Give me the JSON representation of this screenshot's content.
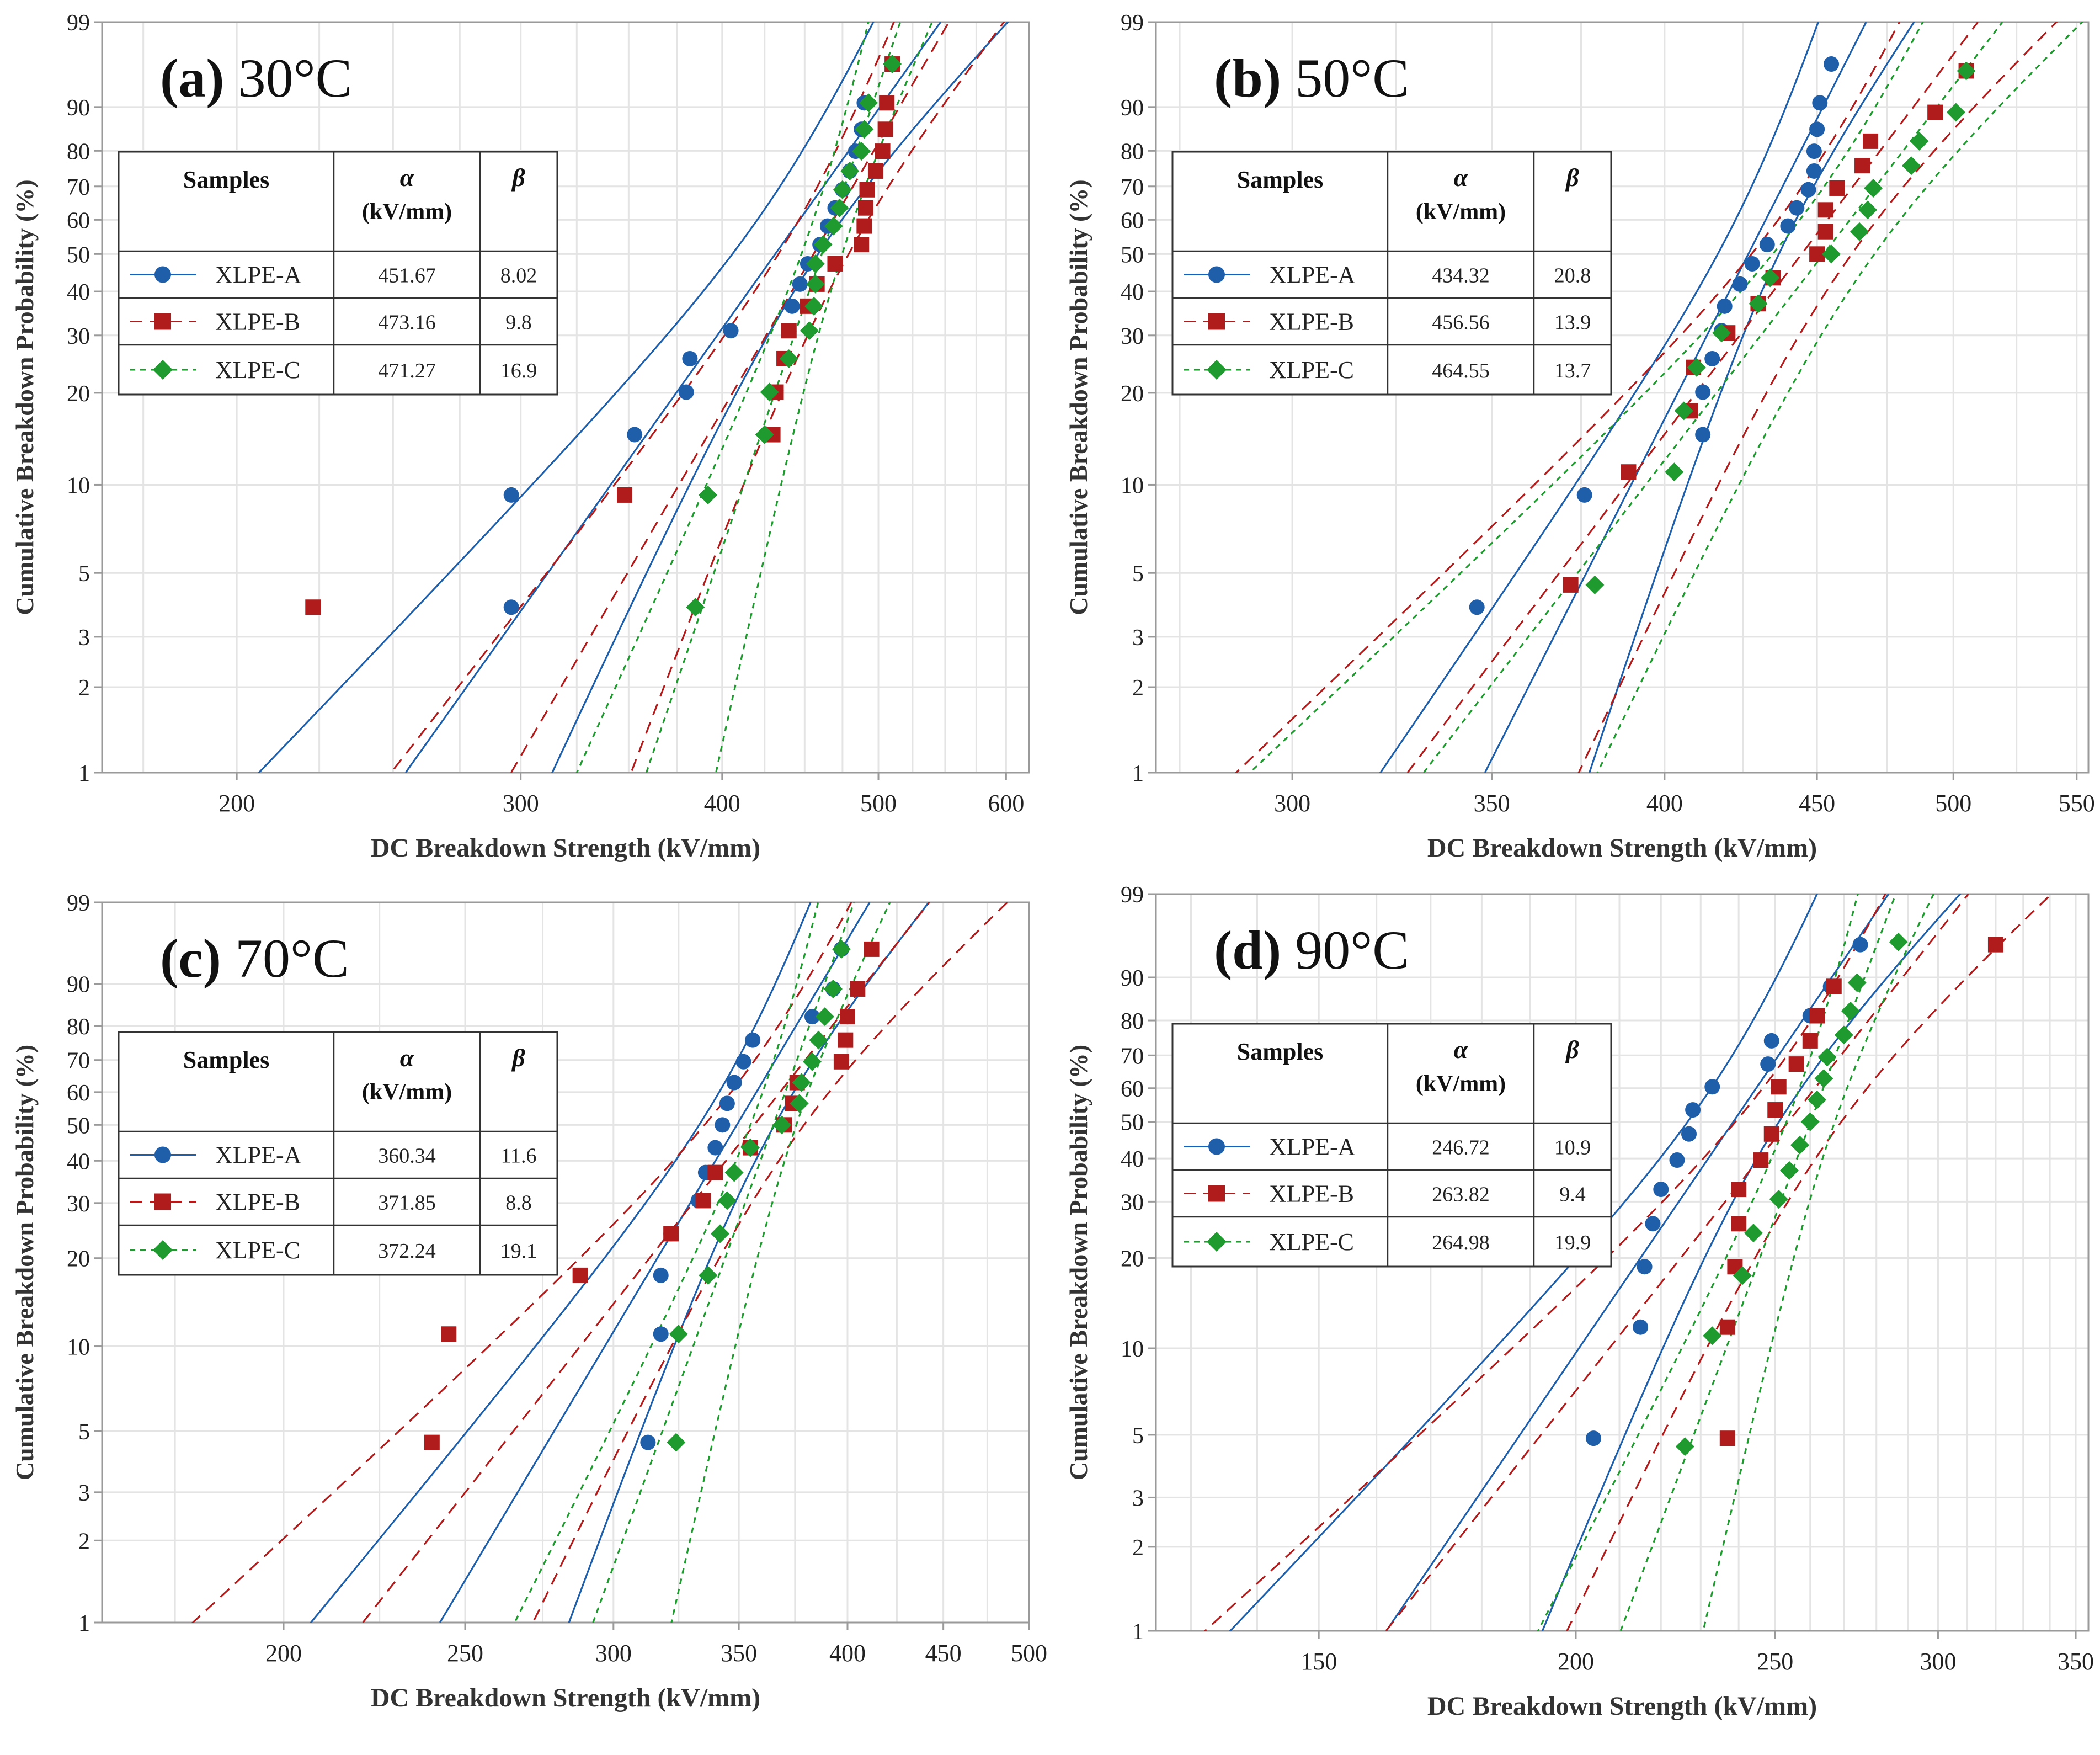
{
  "figure": {
    "panels_count": 4
  },
  "colors": {
    "A": "#1f5faa",
    "B": "#b01c1c",
    "C": "#1e9a2e",
    "grid": "#e4e4e4",
    "frame": "#9a9a9a"
  },
  "legend_header": {
    "samples": "Samples",
    "alpha": "α",
    "alpha_unit": "(kV/mm)",
    "beta": "β"
  },
  "chart_data": [
    {
      "type": "scatter",
      "title_letter": "(a)",
      "title_temp": "30°C",
      "xlabel": "DC Breakdown Strength (kV/mm)",
      "ylabel": "Cumulative Breakdown Probability (%)",
      "x_scale": "log",
      "xlim": [
        165,
        620
      ],
      "x_ticks": [
        200,
        300,
        400,
        500,
        600
      ],
      "y_scale": "weibull",
      "ylim": [
        1,
        99
      ],
      "y_ticks": [
        1,
        2,
        3,
        5,
        10,
        20,
        30,
        40,
        50,
        60,
        70,
        80,
        90,
        99
      ],
      "grid": true,
      "legend_position": "left-middle",
      "series": [
        {
          "name": "XLPE-A",
          "alpha": "451.67",
          "beta": "8.02",
          "x": [
            296,
            296,
            353,
            380,
            382,
            405,
            442,
            447,
            452,
            460,
            465,
            470,
            475,
            480,
            484,
            488,
            490,
            510
          ]
        },
        {
          "name": "XLPE-B",
          "alpha": "473.16",
          "beta": "9.8",
          "x": [
            223,
            348,
            430,
            432,
            437,
            440,
            452,
            458,
            470,
            488,
            490,
            491,
            492,
            498,
            505,
            506,
            503,
            510
          ]
        },
        {
          "name": "XLPE-C",
          "alpha": "471.27",
          "beta": "16.9",
          "x": [
            385,
            392,
            425,
            428,
            440,
            453,
            457,
            457,
            456,
            462,
            469,
            473,
            475,
            480,
            488,
            490,
            493,
            510
          ]
        }
      ]
    },
    {
      "type": "scatter",
      "title_letter": "(b)",
      "title_temp": "50°C",
      "xlabel": "DC Breakdown Strength (kV/mm)",
      "ylabel": "Cumulative Breakdown Probability (%)",
      "x_scale": "log",
      "xlim": [
        270,
        555
      ],
      "x_ticks": [
        300,
        350,
        400,
        450,
        500,
        550
      ],
      "y_scale": "weibull",
      "ylim": [
        1,
        99
      ],
      "y_ticks": [
        1,
        2,
        3,
        5,
        10,
        20,
        30,
        40,
        50,
        60,
        70,
        80,
        90,
        99
      ],
      "grid": true,
      "legend_position": "left-middle",
      "series": [
        {
          "name": "XLPE-A",
          "alpha": "434.32",
          "beta": "20.8",
          "x": [
            346,
            376,
            412,
            412,
            415,
            418,
            419,
            424,
            428,
            433,
            440,
            443,
            447,
            449,
            449,
            450,
            451,
            455
          ]
        },
        {
          "name": "XLPE-B",
          "alpha": "456.56",
          "beta": "13.9",
          "x": [
            372,
            389,
            409,
            408,
            420,
            430,
            435,
            450,
            453,
            453,
            457,
            466,
            469,
            493,
            505
          ]
        },
        {
          "name": "XLPE-C",
          "alpha": "464.55",
          "beta": "13.7",
          "x": [
            379,
            403,
            406,
            410,
            418,
            430,
            434,
            455,
            465,
            468,
            470,
            484,
            487,
            501,
            505
          ]
        }
      ]
    },
    {
      "type": "scatter",
      "title_letter": "(c)",
      "title_temp": "70°C",
      "xlabel": "DC Breakdown Strength (kV/mm)",
      "ylabel": "Cumulative Breakdown Probability (%)",
      "x_scale": "log",
      "xlim": [
        160,
        500
      ],
      "x_ticks": [
        200,
        250,
        300,
        350,
        400,
        450,
        500
      ],
      "y_scale": "weibull",
      "ylim": [
        1,
        99
      ],
      "y_ticks": [
        1,
        2,
        3,
        5,
        10,
        20,
        30,
        40,
        50,
        60,
        70,
        80,
        90,
        99
      ],
      "grid": true,
      "legend_position": "left-middle",
      "series": [
        {
          "name": "XLPE-A",
          "alpha": "360.34",
          "beta": "11.6",
          "x": [
            313,
            318,
            318,
            322,
            333,
            336,
            340,
            343,
            345,
            348,
            352,
            356,
            383,
            393,
            397
          ]
        },
        {
          "name": "XLPE-B",
          "alpha": "371.85",
          "beta": "8.8",
          "x": [
            240,
            245,
            288,
            322,
            335,
            340,
            355,
            370,
            374,
            376,
            397,
            399,
            400,
            405,
            412
          ]
        },
        {
          "name": "XLPE-C",
          "alpha": "372.24",
          "beta": "19.1",
          "x": [
            325,
            324,
            337,
            342,
            345,
            348,
            355,
            369,
            377,
            378,
            383,
            386,
            389,
            393,
            397
          ]
        }
      ]
    },
    {
      "type": "scatter",
      "title_letter": "(d)",
      "title_temp": "90°C",
      "xlabel": "DC Breakdown Strength (kV/mm)",
      "ylabel": "Cumulative Breakdown Probability (%)",
      "x_scale": "log",
      "xlim": [
        125,
        355
      ],
      "x_ticks": [
        150,
        200,
        250,
        300,
        350
      ],
      "y_scale": "weibull",
      "ylim": [
        1,
        99
      ],
      "y_ticks": [
        1,
        2,
        3,
        5,
        10,
        20,
        30,
        40,
        50,
        60,
        70,
        80,
        90,
        99
      ],
      "grid": true,
      "legend_position": "left-middle",
      "series": [
        {
          "name": "XLPE-A",
          "alpha": "246.72",
          "beta": "10.9",
          "x": [
            204,
            215,
            216,
            218,
            220,
            224,
            227,
            228,
            233,
            248,
            249,
            260,
            266,
            275
          ]
        },
        {
          "name": "XLPE-B",
          "alpha": "263.82",
          "beta": "9.4",
          "x": [
            237,
            237,
            239,
            240,
            240,
            246,
            249,
            250,
            251,
            256,
            260,
            262,
            267,
            320
          ]
        },
        {
          "name": "XLPE-C",
          "alpha": "264.98",
          "beta": "19.9",
          "x": [
            226,
            233,
            241,
            244,
            251,
            254,
            257,
            260,
            262,
            264,
            265,
            270,
            272,
            274,
            287
          ]
        }
      ]
    }
  ]
}
